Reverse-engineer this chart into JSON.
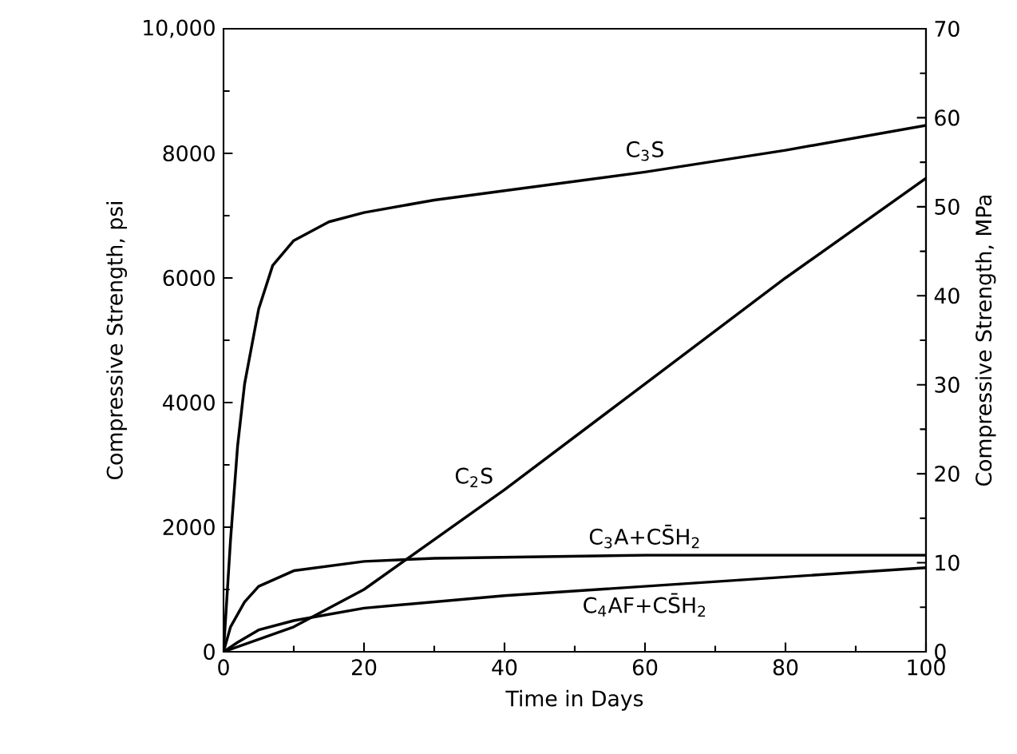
{
  "chart_data": {
    "type": "line",
    "xlabel": "Time in Days",
    "ylabel": "Compressive Strength, psi",
    "y2label": "Compressive Strength, MPa",
    "xlim": [
      0,
      100
    ],
    "ylim": [
      0,
      10000
    ],
    "y2lim": [
      0,
      70
    ],
    "xticks": [
      0,
      20,
      40,
      60,
      80,
      100
    ],
    "yticks": [
      0,
      2000,
      4000,
      6000,
      8000,
      {
        "value": 10000,
        "label": "10,000"
      }
    ],
    "y2ticks": [
      0,
      10,
      20,
      30,
      40,
      50,
      60,
      70
    ],
    "grid": false,
    "legend": false,
    "marker": "none",
    "line_style": "solid",
    "series": [
      {
        "name": "C$_{3}$S",
        "color": "#000000",
        "x": [
          0,
          1,
          2,
          3,
          5,
          7,
          10,
          15,
          20,
          30,
          40,
          60,
          80,
          100
        ],
        "values": [
          0,
          1800,
          3300,
          4300,
          5500,
          6200,
          6600,
          6900,
          7050,
          7250,
          7400,
          7700,
          8050,
          8450
        ]
      },
      {
        "name": "C$_{2}$S",
        "color": "#000000",
        "x": [
          0,
          10,
          20,
          40,
          60,
          80,
          100
        ],
        "values": [
          0,
          400,
          1000,
          2600,
          4300,
          6000,
          7600
        ]
      },
      {
        "name": "C$_{3}$A+CS̄H$_{2}$",
        "color": "#000000",
        "x": [
          0,
          1,
          3,
          5,
          10,
          20,
          30,
          60,
          100
        ],
        "values": [
          0,
          400,
          800,
          1050,
          1300,
          1450,
          1500,
          1550,
          1550
        ]
      },
      {
        "name": "C$_{4}$AF+CS̄H$_{2}$",
        "color": "#000000",
        "x": [
          0,
          2,
          5,
          10,
          20,
          40,
          60,
          80,
          100
        ],
        "values": [
          0,
          150,
          350,
          500,
          700,
          900,
          1050,
          1200,
          1350
        ]
      }
    ]
  }
}
